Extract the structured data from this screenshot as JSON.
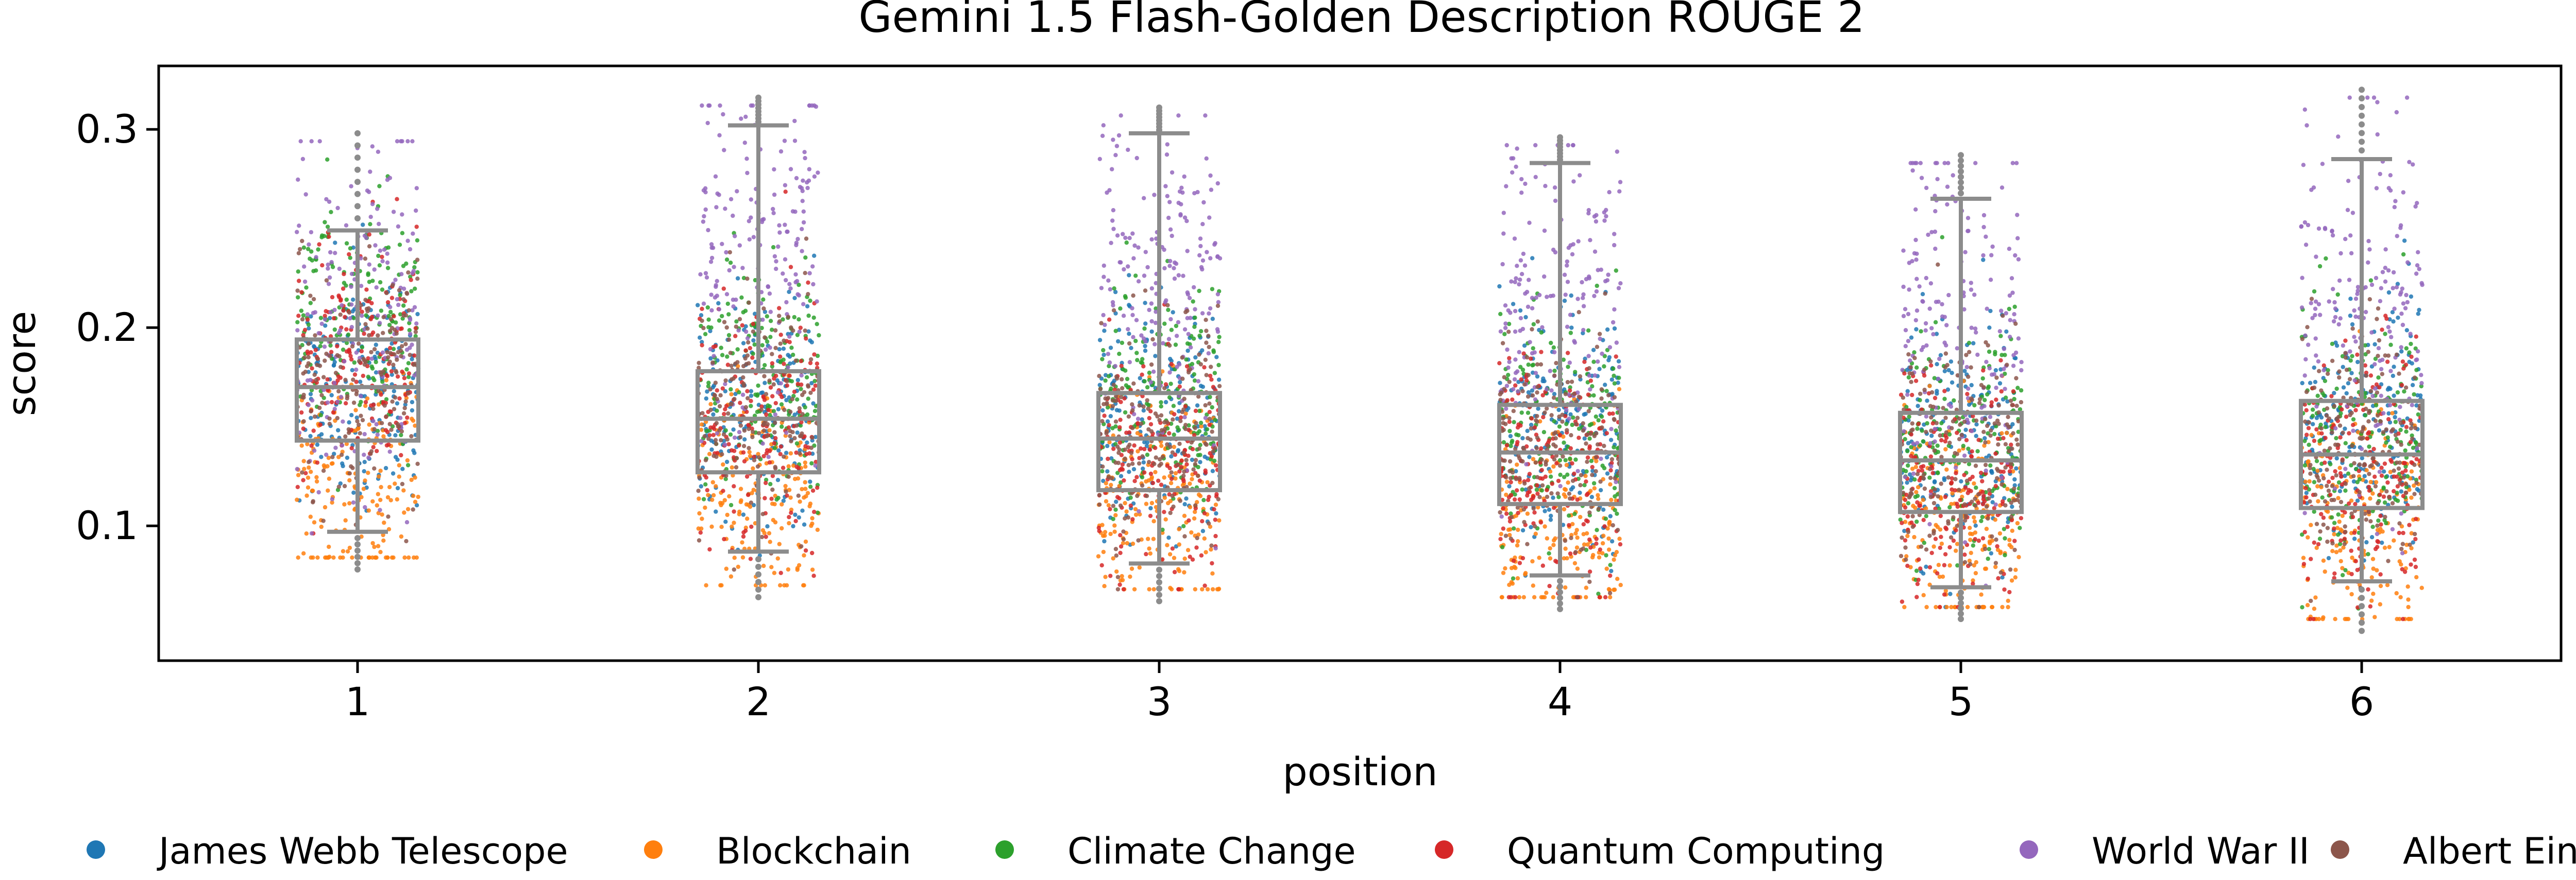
{
  "chart_data": {
    "type": "scatter",
    "title": "Gemini 1.5 Flash-Golden Description ROUGE 2",
    "xlabel": "position",
    "ylabel": "score",
    "ylim": [
      0.032,
      0.332
    ],
    "y_ticks": [
      "0.1",
      "0.2",
      "0.3"
    ],
    "categories": [
      "1",
      "2",
      "3",
      "4",
      "5",
      "6"
    ],
    "overlay": "boxplot with jittered strip points",
    "legend_position": "bottom",
    "series": [
      {
        "name": "James Webb Telescope",
        "color": "#1f77b4"
      },
      {
        "name": "Blockchain",
        "color": "#ff7f0e"
      },
      {
        "name": "Climate Change",
        "color": "#2ca02c"
      },
      {
        "name": "Quantum Computing",
        "color": "#d62728"
      },
      {
        "name": "World War II",
        "color": "#9467bd"
      },
      {
        "name": "Albert Einstein",
        "color": "#8c564b"
      }
    ],
    "boxes": [
      {
        "position": "1",
        "whisker_low": 0.097,
        "q1": 0.143,
        "median": 0.17,
        "q3": 0.194,
        "whisker_high": 0.249,
        "min": 0.078,
        "max": 0.298
      },
      {
        "position": "2",
        "whisker_low": 0.087,
        "q1": 0.127,
        "median": 0.154,
        "q3": 0.178,
        "whisker_high": 0.302,
        "min": 0.064,
        "max": 0.316
      },
      {
        "position": "3",
        "whisker_low": 0.081,
        "q1": 0.118,
        "median": 0.144,
        "q3": 0.167,
        "whisker_high": 0.298,
        "min": 0.062,
        "max": 0.311
      },
      {
        "position": "4",
        "whisker_low": 0.075,
        "q1": 0.111,
        "median": 0.137,
        "q3": 0.161,
        "whisker_high": 0.283,
        "min": 0.058,
        "max": 0.296
      },
      {
        "position": "5",
        "whisker_low": 0.069,
        "q1": 0.107,
        "median": 0.133,
        "q3": 0.157,
        "whisker_high": 0.265,
        "min": 0.053,
        "max": 0.287
      },
      {
        "position": "6",
        "whisker_low": 0.072,
        "q1": 0.109,
        "median": 0.136,
        "q3": 0.163,
        "whisker_high": 0.285,
        "min": 0.047,
        "max": 0.32
      }
    ],
    "series_centers": [
      [
        0.168,
        0.122,
        0.205,
        0.182,
        0.2,
        0.175
      ],
      [
        0.162,
        0.118,
        0.175,
        0.15,
        0.24,
        0.158
      ],
      [
        0.156,
        0.108,
        0.162,
        0.135,
        0.225,
        0.148
      ],
      [
        0.15,
        0.1,
        0.15,
        0.128,
        0.215,
        0.14
      ],
      [
        0.148,
        0.098,
        0.145,
        0.122,
        0.205,
        0.135
      ],
      [
        0.155,
        0.1,
        0.148,
        0.125,
        0.215,
        0.14
      ]
    ]
  }
}
